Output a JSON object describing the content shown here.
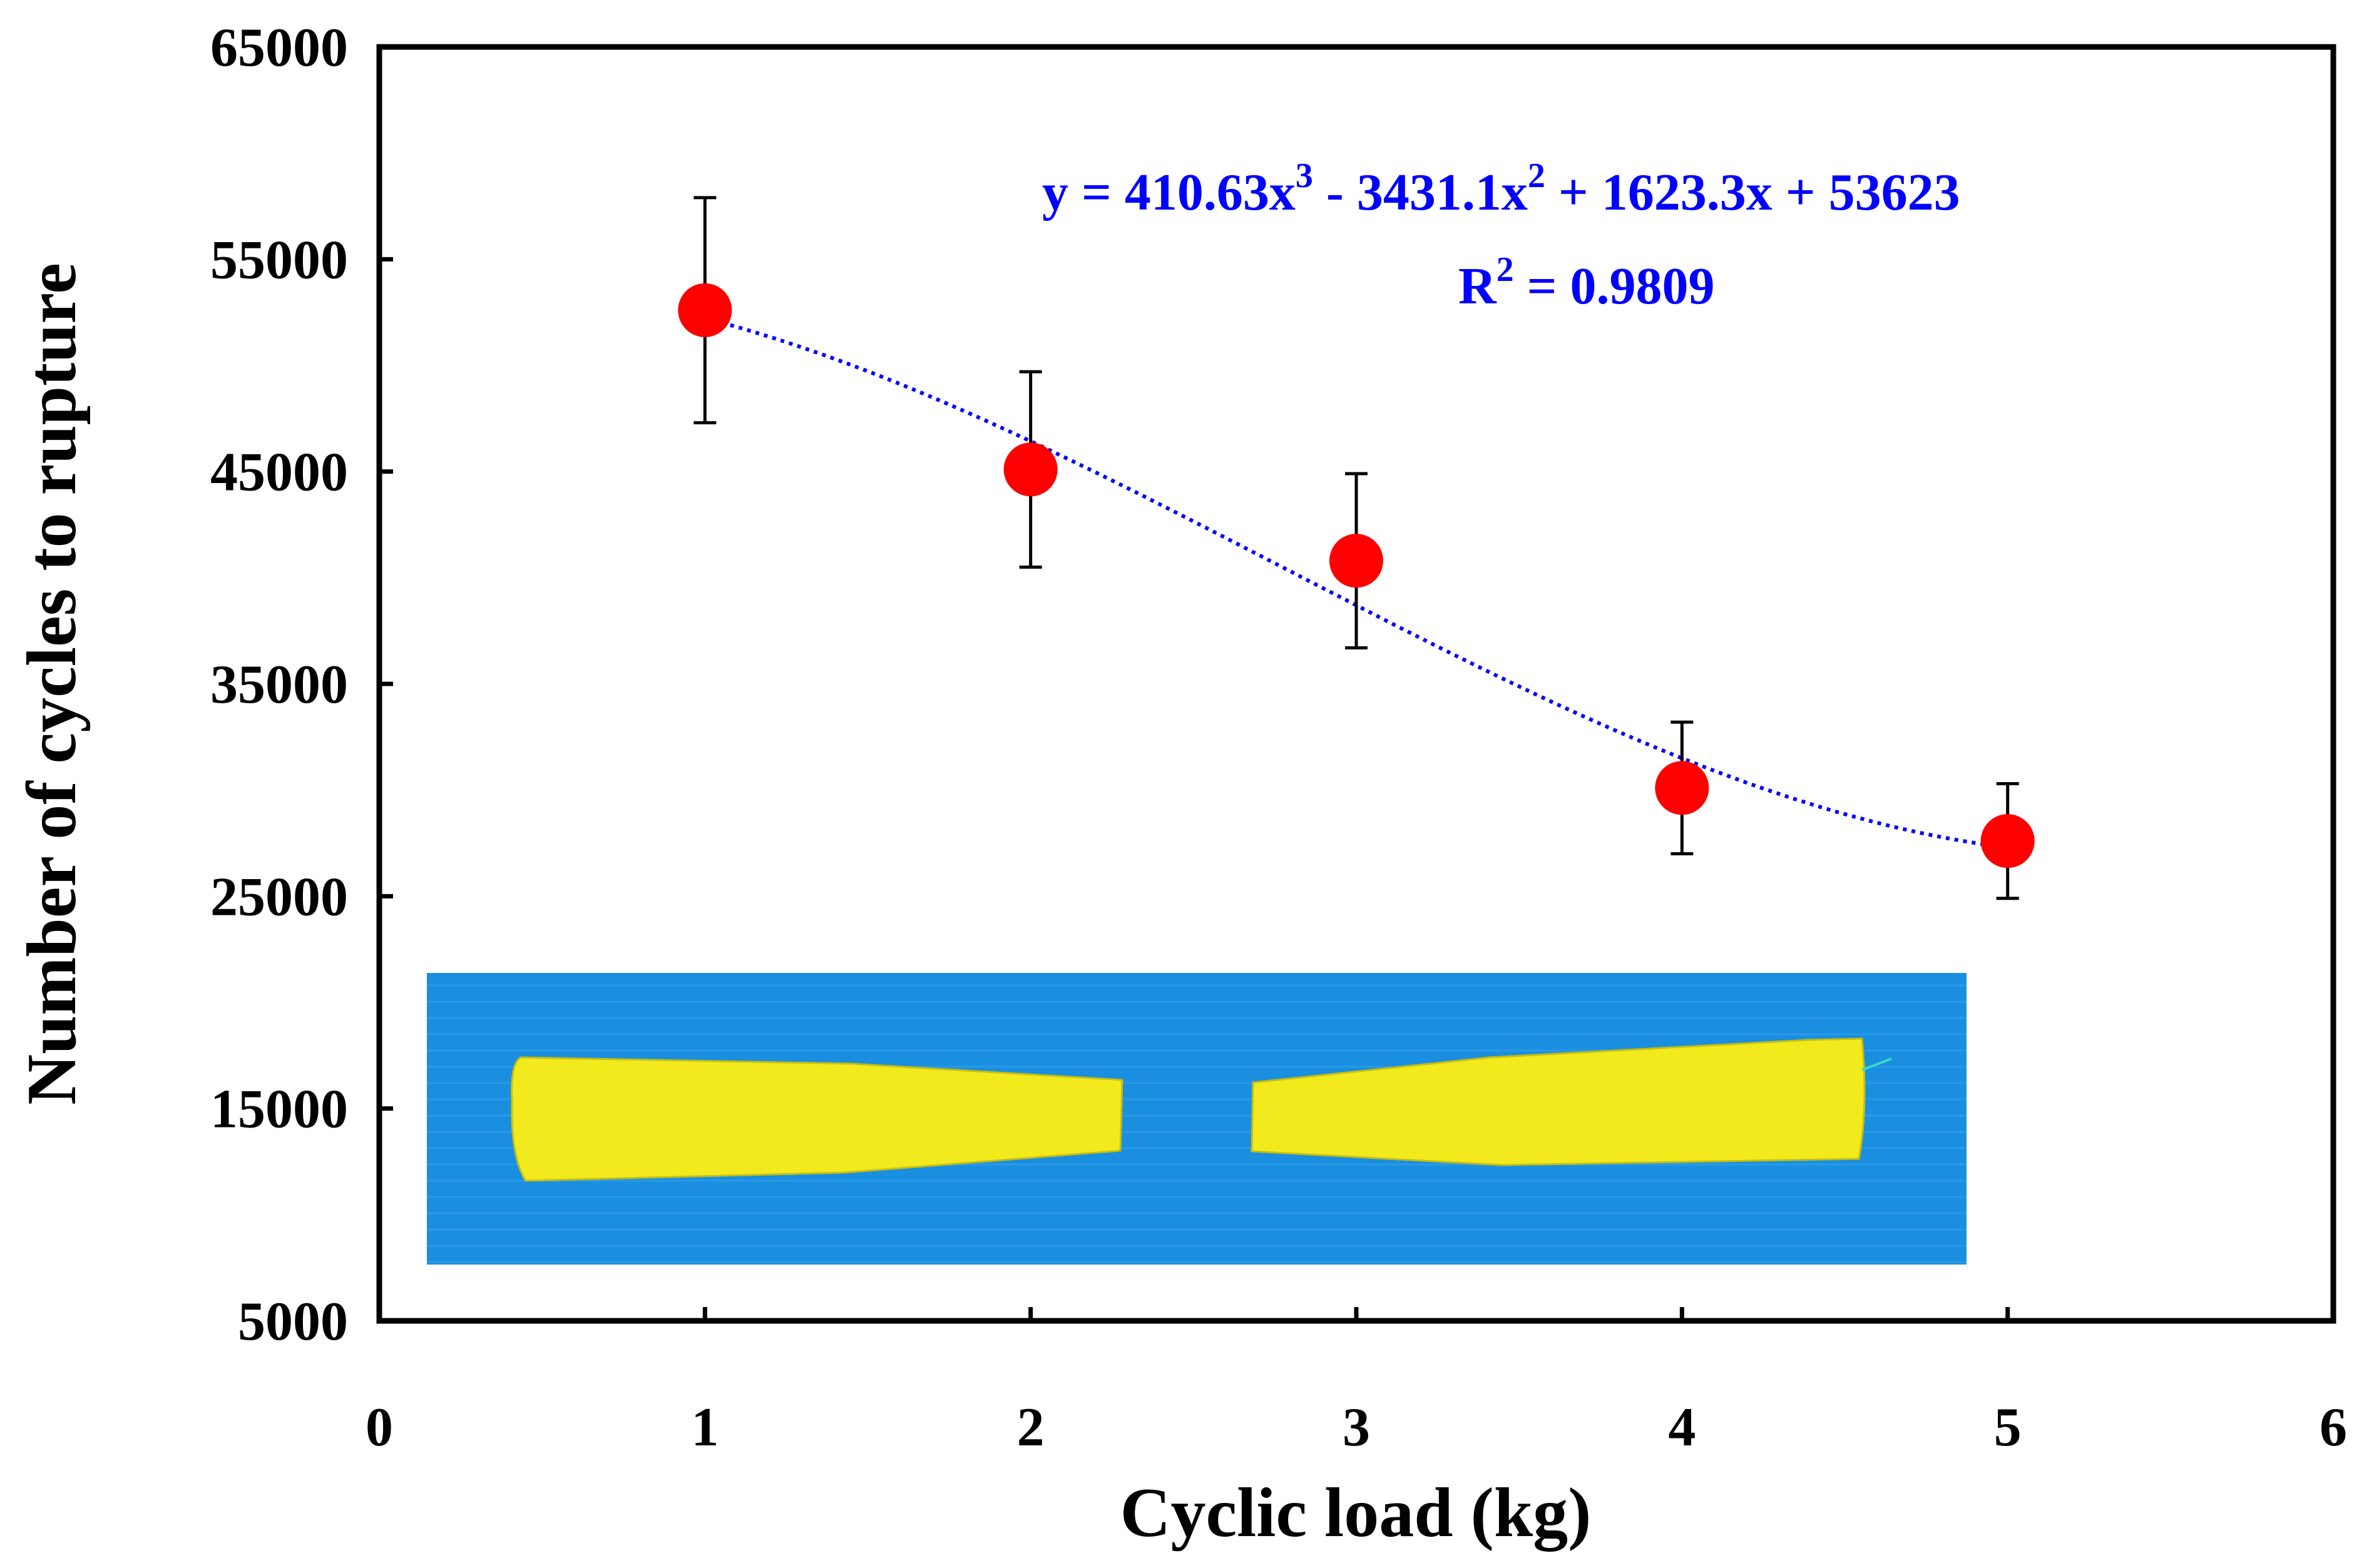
{
  "chart_data": {
    "type": "scatter",
    "title": "",
    "xlabel": "Cyclic load (kg)",
    "ylabel": "Number of cycles to rupture",
    "xlim": [
      0,
      6
    ],
    "ylim": [
      5000,
      65000
    ],
    "x_ticks": [
      "0",
      "1",
      "2",
      "3",
      "4",
      "5",
      "6"
    ],
    "y_ticks": [
      "5000",
      "15000",
      "25000",
      "35000",
      "45000",
      "55000",
      "65000"
    ],
    "grid": false,
    "legend": "none",
    "series": [
      {
        "x": [
          1,
          2,
          3,
          4,
          5
        ],
        "y": [
          52600,
          45100,
          40800,
          30100,
          27600
        ],
        "error": [
          5300,
          4600,
          4100,
          3100,
          2700
        ],
        "color": "#ff0000"
      }
    ],
    "trendline": {
      "type": "polynomial",
      "order": 3,
      "coefficients": [
        410.63,
        -3431.1,
        1623.3,
        53623
      ],
      "x_range": [
        1,
        5
      ],
      "color": "#0000ff",
      "equation": {
        "y_part": "y = 410.63x",
        "sup1": "3",
        "mid_part": " - 3431.1x",
        "sup2": "2",
        "end_part": " + 1623.3x + 53623"
      },
      "r2": {
        "prefix": "R",
        "sup": "2",
        "suffix": " = 0.9809"
      }
    },
    "inset": {
      "description_colors": {
        "background": "#1a8fe0",
        "specimen": "#f2ea1c"
      }
    }
  }
}
